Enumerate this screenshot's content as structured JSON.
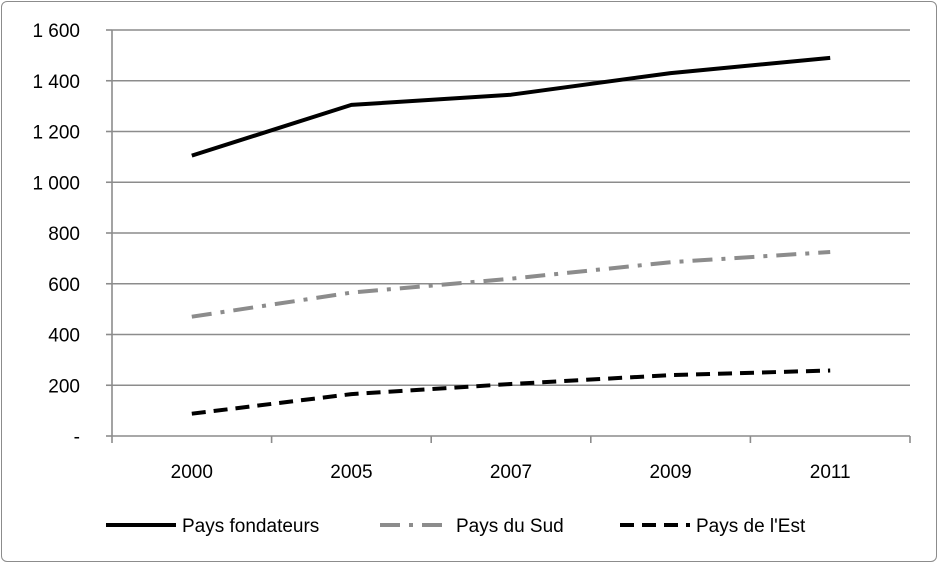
{
  "chart_data": {
    "type": "line",
    "categories": [
      "2000",
      "2005",
      "2007",
      "2009",
      "2011"
    ],
    "ylim": [
      0,
      1600
    ],
    "yticks": [
      {
        "value": 0,
        "label": "-"
      },
      {
        "value": 200,
        "label": "200"
      },
      {
        "value": 400,
        "label": "400"
      },
      {
        "value": 600,
        "label": "600"
      },
      {
        "value": 800,
        "label": "800"
      },
      {
        "value": 1000,
        "label": "1 000"
      },
      {
        "value": 1200,
        "label": "1 200"
      },
      {
        "value": 1400,
        "label": "1 400"
      },
      {
        "value": 1600,
        "label": "1 600"
      }
    ],
    "grid": true,
    "legend_position": "bottom",
    "series": [
      {
        "name": "Pays fondateurs",
        "values": [
          1105,
          1305,
          1345,
          1430,
          1490
        ],
        "color": "#000000",
        "style": "solid"
      },
      {
        "name": "Pays du Sud",
        "values": [
          470,
          565,
          620,
          685,
          725
        ],
        "color": "#8c8c8c",
        "style": "dashdot"
      },
      {
        "name": "Pays de l'Est",
        "values": [
          88,
          165,
          205,
          240,
          258
        ],
        "color": "#000000",
        "style": "dashed"
      }
    ]
  }
}
